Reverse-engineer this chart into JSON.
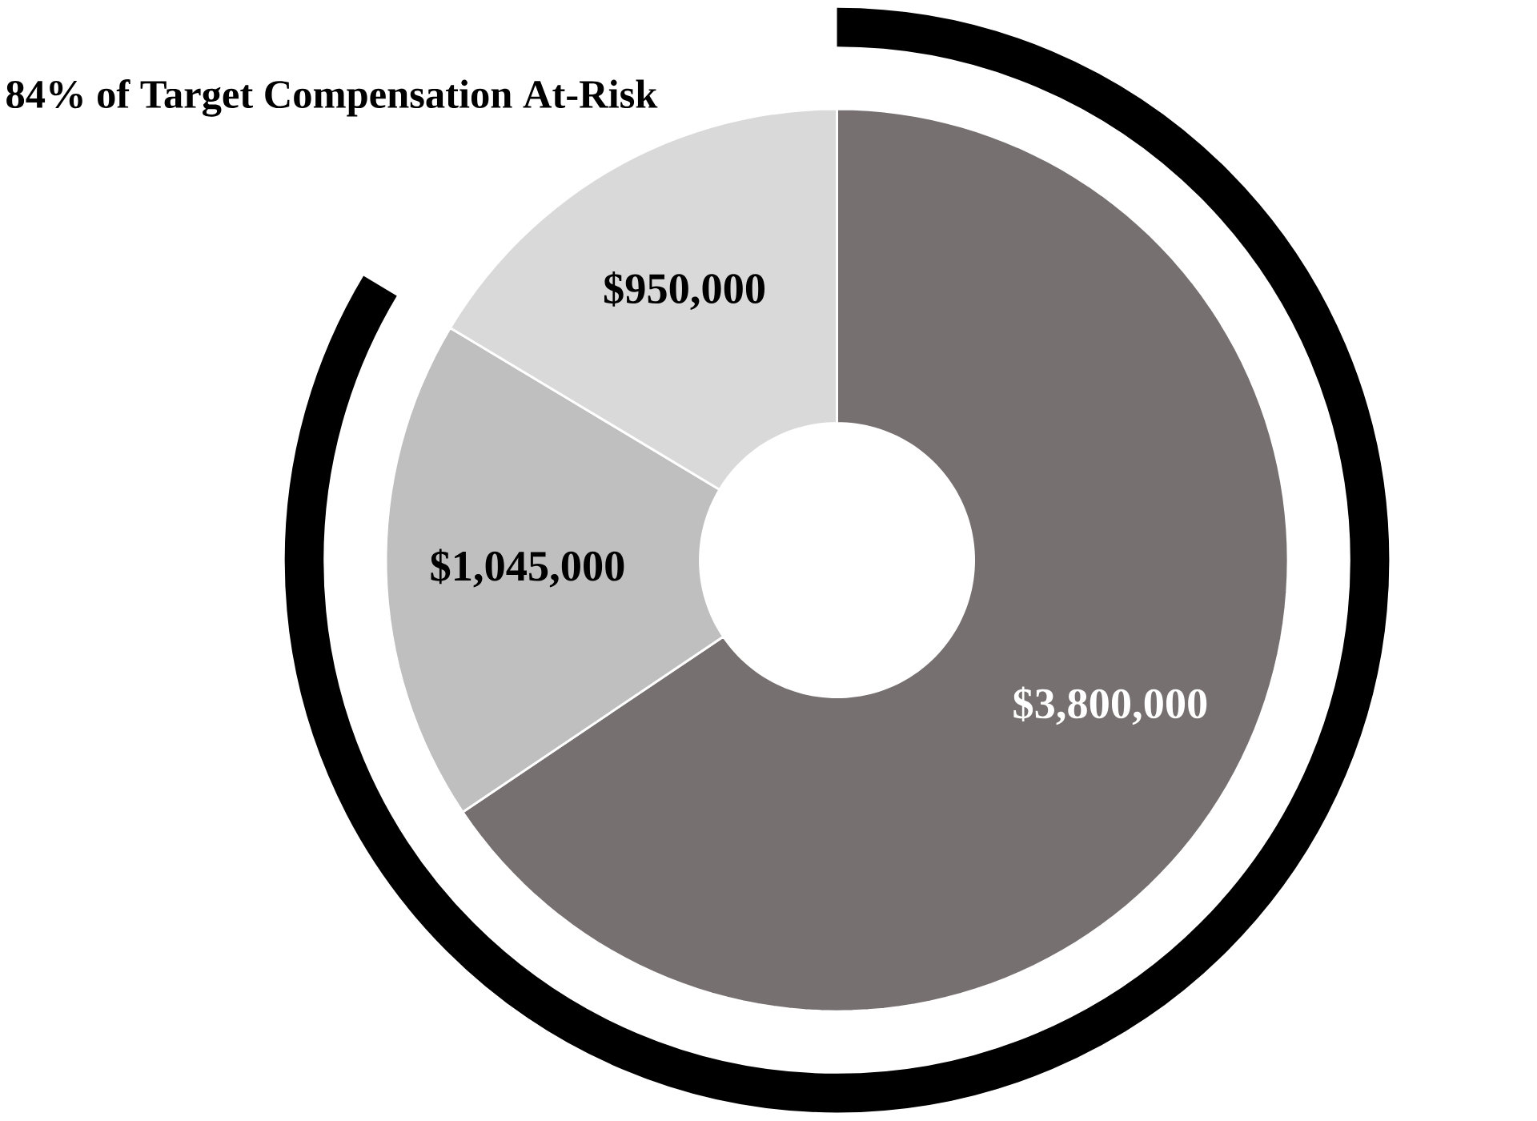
{
  "chart_data": {
    "type": "donut",
    "title": "84% of Target Compensation At-Risk",
    "categories": [
      null,
      null,
      null
    ],
    "values": [
      3800000,
      1045000,
      950000
    ],
    "value_labels": [
      "$3,800,000",
      "$1,045,000",
      "$950,000"
    ],
    "colors": [
      "#767070",
      "#bfbfbf",
      "#d9d9d9"
    ]
  }
}
